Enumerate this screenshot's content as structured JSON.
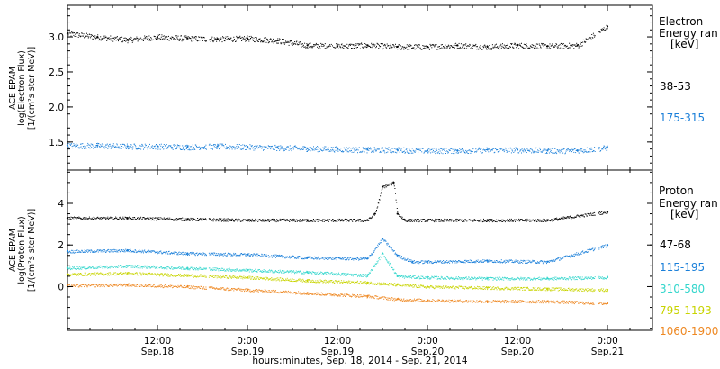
{
  "xlabel": "hours:minutes, Sep. 18, 2014 - Sep. 21, 2014",
  "x_ticks": [
    {
      "time": "12:00",
      "date": "Sep.18",
      "hours": 12
    },
    {
      "time": "0:00",
      "date": "Sep.19",
      "hours": 24
    },
    {
      "time": "12:00",
      "date": "Sep.19",
      "hours": 36
    },
    {
      "time": "0:00",
      "date": "Sep.20",
      "hours": 48
    },
    {
      "time": "12:00",
      "date": "Sep.20",
      "hours": 60
    },
    {
      "time": "0:00",
      "date": "Sep.21",
      "hours": 72
    }
  ],
  "chart_data": [
    {
      "type": "scatter",
      "panel": "electron",
      "ylabel_lines": [
        "ACE EPAM",
        "log(Electron Flux)",
        "[1/(cm²s ster MeV)]"
      ],
      "ylim": [
        1.1,
        3.45
      ],
      "yticks": [
        "1.5",
        "2.0",
        "2.5",
        "3.0"
      ],
      "xlim_hours": [
        0,
        78
      ],
      "data_gaps_hours": [
        [
          18.5,
          18.8
        ],
        [
          70.3,
          70.7
        ]
      ],
      "legend": {
        "title": [
          "Electron",
          "Energy ran",
          "[keV]"
        ]
      },
      "series": [
        {
          "name": "38-53",
          "color": "#000000",
          "x_hours": [
            0,
            4,
            8,
            12,
            16,
            20,
            24,
            28,
            32,
            36,
            40,
            44,
            48,
            52,
            56,
            60,
            64,
            68,
            72
          ],
          "values": [
            3.05,
            3.0,
            2.96,
            3.0,
            2.98,
            2.97,
            2.98,
            2.95,
            2.88,
            2.87,
            2.88,
            2.86,
            2.86,
            2.88,
            2.86,
            2.88,
            2.87,
            2.88,
            3.15
          ]
        },
        {
          "name": "175-315",
          "color": "#1a7fd9",
          "x_hours": [
            0,
            4,
            8,
            12,
            16,
            20,
            24,
            28,
            32,
            36,
            40,
            44,
            48,
            52,
            56,
            60,
            64,
            68,
            72
          ],
          "values": [
            1.45,
            1.45,
            1.44,
            1.44,
            1.43,
            1.44,
            1.43,
            1.42,
            1.41,
            1.4,
            1.39,
            1.39,
            1.38,
            1.38,
            1.39,
            1.39,
            1.38,
            1.38,
            1.42
          ]
        }
      ]
    },
    {
      "type": "scatter",
      "panel": "proton",
      "ylabel_lines": [
        "ACE EPAM",
        "log(Proton Flux)",
        "[1/(cm²s ster MeV)]"
      ],
      "ylim": [
        -2.1,
        5.6
      ],
      "yticks": [
        "0",
        "2",
        "4"
      ],
      "xlim_hours": [
        0,
        78
      ],
      "data_gaps_hours": [
        [
          18.5,
          18.8
        ],
        [
          70.3,
          70.7
        ]
      ],
      "legend": {
        "title": [
          "Proton",
          "Energy ran",
          "[keV]"
        ]
      },
      "series": [
        {
          "name": "47-68",
          "color": "#000000",
          "x_hours": [
            0,
            8,
            16,
            24,
            32,
            40,
            41,
            42,
            43.5,
            44,
            45,
            48,
            56,
            64,
            72
          ],
          "values": [
            3.3,
            3.3,
            3.25,
            3.2,
            3.2,
            3.2,
            3.5,
            4.8,
            5.0,
            3.5,
            3.2,
            3.2,
            3.2,
            3.2,
            3.6
          ]
        },
        {
          "name": "115-195",
          "color": "#1a7fd9",
          "x_hours": [
            0,
            8,
            16,
            24,
            32,
            40,
            42,
            44,
            46,
            48,
            56,
            64,
            72
          ],
          "values": [
            1.7,
            1.75,
            1.6,
            1.55,
            1.4,
            1.35,
            2.3,
            1.5,
            1.2,
            1.2,
            1.25,
            1.2,
            2.0
          ]
        },
        {
          "name": "310-580",
          "color": "#33d6cc",
          "x_hours": [
            0,
            8,
            16,
            24,
            32,
            40,
            42,
            44,
            48,
            56,
            64,
            72
          ],
          "values": [
            0.9,
            1.0,
            0.9,
            0.8,
            0.7,
            0.55,
            1.6,
            0.5,
            0.45,
            0.4,
            0.4,
            0.45
          ]
        },
        {
          "name": "795-1193",
          "color": "#c8d400",
          "x_hours": [
            0,
            8,
            16,
            24,
            32,
            40,
            44,
            48,
            56,
            64,
            72
          ],
          "values": [
            0.6,
            0.65,
            0.55,
            0.45,
            0.3,
            0.2,
            0.1,
            0.0,
            -0.05,
            -0.1,
            -0.15
          ]
        },
        {
          "name": "1060-1900",
          "color": "#ee8822",
          "x_hours": [
            0,
            8,
            16,
            24,
            32,
            40,
            44,
            48,
            56,
            64,
            72
          ],
          "values": [
            0.05,
            0.1,
            0.0,
            -0.15,
            -0.3,
            -0.45,
            -0.6,
            -0.65,
            -0.7,
            -0.7,
            -0.8
          ]
        }
      ]
    }
  ]
}
